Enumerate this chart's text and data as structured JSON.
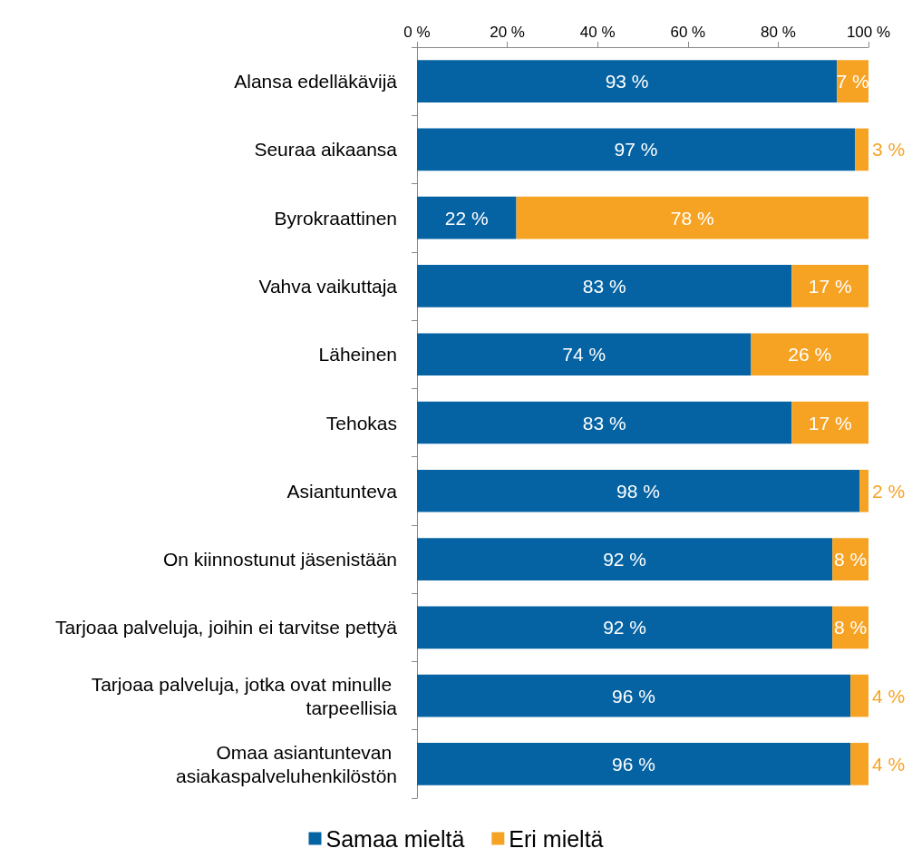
{
  "chart_data": {
    "type": "bar",
    "orientation": "horizontal",
    "stacked": true,
    "categories": [
      "Alansa edelläkävijä",
      "Seuraa aikaansa",
      "Byrokraattinen",
      "Vahva vaikuttaja",
      "Läheinen",
      "Tehokas",
      "Asiantunteva",
      "On kiinnostunut jäsenistään",
      "Tarjoaa palveluja, joihin ei tarvitse pettyä",
      "Tarjoaa palveluja, jotka ovat minulle tarpeellisia",
      "Omaa asiantuntevan asiakaspalveluhenkilöstön"
    ],
    "series": [
      {
        "name": "Samaa mieltä",
        "color": "#0563a3",
        "values": [
          93,
          97,
          22,
          83,
          74,
          83,
          98,
          92,
          92,
          96,
          96
        ],
        "value_labels": [
          "93 %",
          "97 %",
          "22 %",
          "83 %",
          "74 %",
          "83 %",
          "98 %",
          "92 %",
          "92 %",
          "96 %",
          "96 %"
        ]
      },
      {
        "name": "Eri mieltä",
        "color": "#f6a324",
        "values": [
          7,
          3,
          78,
          17,
          26,
          17,
          2,
          8,
          8,
          4,
          4
        ],
        "value_labels": [
          "7 %",
          "3 %",
          "78 %",
          "17 %",
          "26 %",
          "17 %",
          "2 %",
          "8 %",
          "8 %",
          "4 %",
          "4 %"
        ]
      }
    ],
    "xlim": [
      0,
      100
    ],
    "xticks": [
      {
        "value": 0,
        "label": "0 %"
      },
      {
        "value": 20,
        "label": "20 %"
      },
      {
        "value": 40,
        "label": "40 %"
      },
      {
        "value": 60,
        "label": "60 %"
      },
      {
        "value": 80,
        "label": "80 %"
      },
      {
        "value": 100,
        "label": "100 %"
      }
    ],
    "grid": false,
    "legend": "bottom"
  }
}
